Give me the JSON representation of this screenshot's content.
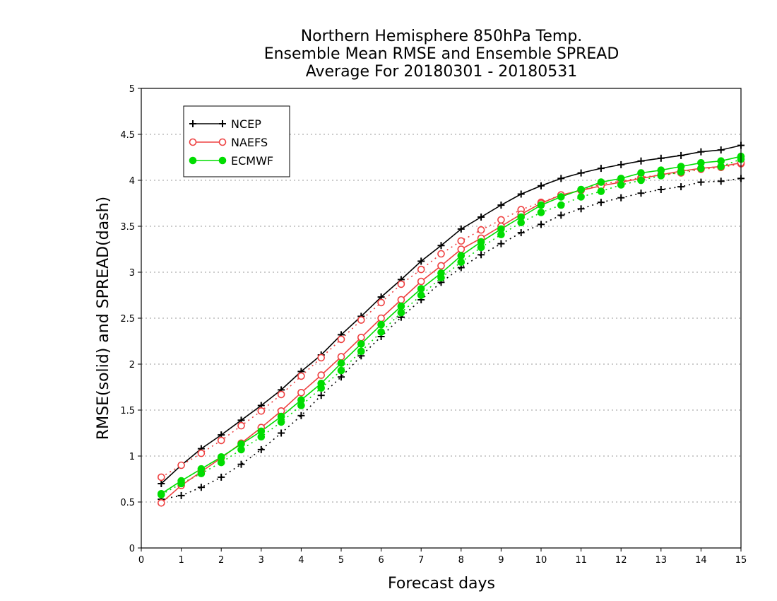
{
  "chart_data": {
    "type": "line",
    "title": [
      "Northern Hemisphere 850hPa Temp.",
      "Ensemble Mean RMSE and Ensemble SPREAD",
      "Average For 20180301 - 20180531"
    ],
    "xlabel": "Forecast days",
    "ylabel": "RMSE(solid)  and  SPREAD(dash)",
    "xlim": [
      0,
      15
    ],
    "ylim": [
      0,
      5
    ],
    "xticks": [
      "0",
      "1",
      "2",
      "3",
      "4",
      "5",
      "6",
      "7",
      "8",
      "9",
      "10",
      "11",
      "12",
      "13",
      "14",
      "15"
    ],
    "yticks": [
      "0",
      "0.5",
      "1",
      "1.5",
      "2",
      "2.5",
      "3",
      "3.5",
      "4",
      "4.5",
      "5"
    ],
    "grid": "horizontal dotted",
    "legend_position": "top-left",
    "x": [
      0.5,
      1,
      1.5,
      2,
      2.5,
      3,
      3.5,
      4,
      4.5,
      5,
      5.5,
      6,
      6.5,
      7,
      7.5,
      8,
      8.5,
      9,
      9.5,
      10,
      10.5,
      11,
      11.5,
      12,
      12.5,
      13,
      13.5,
      14,
      14.5,
      15
    ],
    "series": [
      {
        "name": "NCEP",
        "color": "#000000",
        "marker": "plus",
        "rmse": [
          0.7,
          0.9,
          1.08,
          1.23,
          1.39,
          1.55,
          1.72,
          1.92,
          2.1,
          2.32,
          2.52,
          2.73,
          2.92,
          3.12,
          3.29,
          3.47,
          3.6,
          3.73,
          3.85,
          3.94,
          4.02,
          4.08,
          4.13,
          4.17,
          4.21,
          4.24,
          4.27,
          4.31,
          4.33,
          4.38
        ],
        "spread": [
          0.53,
          0.57,
          0.66,
          0.77,
          0.91,
          1.07,
          1.25,
          1.44,
          1.66,
          1.86,
          2.09,
          2.3,
          2.51,
          2.7,
          2.89,
          3.05,
          3.19,
          3.31,
          3.43,
          3.52,
          3.62,
          3.69,
          3.76,
          3.81,
          3.86,
          3.9,
          3.93,
          3.98,
          3.99,
          4.02
        ]
      },
      {
        "name": "NAEFS",
        "color": "#ee4040",
        "marker": "open-circle",
        "rmse": [
          0.49,
          0.68,
          0.83,
          0.98,
          1.14,
          1.31,
          1.49,
          1.69,
          1.88,
          2.08,
          2.29,
          2.5,
          2.7,
          2.9,
          3.07,
          3.25,
          3.37,
          3.5,
          3.63,
          3.75,
          3.84,
          3.89,
          3.94,
          3.98,
          4.02,
          4.06,
          4.1,
          4.13,
          4.15,
          4.19
        ],
        "spread": [
          0.77,
          0.9,
          1.03,
          1.17,
          1.33,
          1.49,
          1.67,
          1.87,
          2.07,
          2.27,
          2.48,
          2.67,
          2.87,
          3.03,
          3.2,
          3.34,
          3.46,
          3.57,
          3.68,
          3.76,
          3.84,
          3.89,
          3.96,
          3.99,
          4.03,
          4.06,
          4.08,
          4.12,
          4.14,
          4.18
        ]
      },
      {
        "name": "ECMWF",
        "color": "#00dd00",
        "marker": "filled-circle",
        "rmse": [
          0.59,
          0.73,
          0.86,
          0.99,
          1.13,
          1.27,
          1.43,
          1.61,
          1.79,
          2.01,
          2.22,
          2.43,
          2.63,
          2.82,
          2.99,
          3.18,
          3.33,
          3.47,
          3.6,
          3.73,
          3.82,
          3.9,
          3.98,
          4.02,
          4.08,
          4.11,
          4.15,
          4.19,
          4.21,
          4.26
        ],
        "spread": [
          0.58,
          0.7,
          0.81,
          0.93,
          1.07,
          1.21,
          1.37,
          1.55,
          1.74,
          1.93,
          2.14,
          2.35,
          2.56,
          2.75,
          2.94,
          3.11,
          3.27,
          3.41,
          3.54,
          3.65,
          3.73,
          3.82,
          3.88,
          3.95,
          4.0,
          4.05,
          4.09,
          4.13,
          4.15,
          4.23
        ]
      }
    ]
  }
}
